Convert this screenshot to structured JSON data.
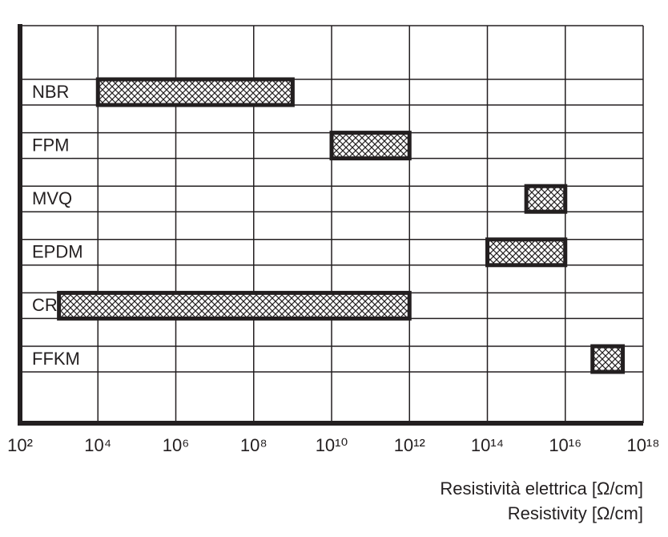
{
  "chart_data": {
    "type": "range-bar",
    "categories": [
      "NBR",
      "FPM",
      "MVQ",
      "EPDM",
      "CR",
      "FFKM"
    ],
    "low": [
      10000,
      10000000000,
      1000000000000000,
      100000000000000,
      1000,
      50000000000000000
    ],
    "high": [
      1000000000,
      1000000000000,
      10000000000000000,
      10000000000000000,
      1000000000000,
      300000000000000000
    ],
    "xscale": "log",
    "xlim": [
      100,
      1000000000000000000
    ],
    "xticks": [
      {
        "value": 100,
        "label": "10²"
      },
      {
        "value": 10000,
        "label": "10⁴"
      },
      {
        "value": 1000000,
        "label": "10⁶"
      },
      {
        "value": 100000000,
        "label": "10⁸"
      },
      {
        "value": 10000000000,
        "label": "10¹⁰"
      },
      {
        "value": 1000000000000,
        "label": "10¹²"
      },
      {
        "value": 100000000000000,
        "label": "10¹⁴"
      },
      {
        "value": 10000000000000000,
        "label": "10¹⁶"
      },
      {
        "value": 1000000000000000000,
        "label": "10¹⁸"
      }
    ],
    "xlabel": [
      "Resistività elettrica [Ω/cm]",
      "Resistivity [Ω/cm]"
    ],
    "grid": true,
    "color": "#231f20"
  }
}
